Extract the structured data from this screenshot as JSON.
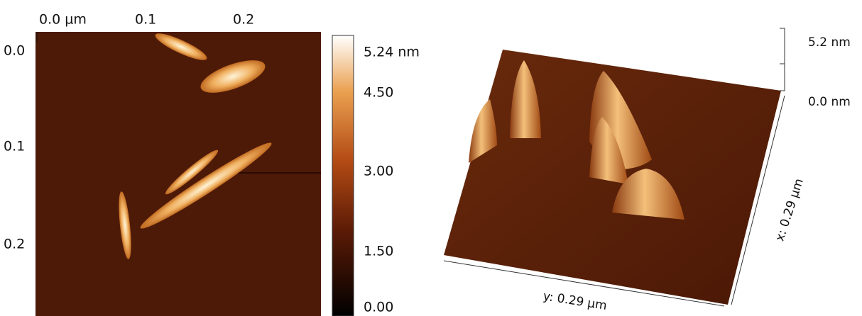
{
  "map": {
    "x_ticks": [
      "0.0 µm",
      "0.1",
      "0.2"
    ],
    "y_ticks": [
      "0.0",
      "0.1",
      "0.2"
    ]
  },
  "colorbar": {
    "labels": [
      "5.24 nm",
      "4.50",
      "3.00",
      "1.50",
      "0.00"
    ]
  },
  "surface": {
    "z_labels": [
      "5.2 nm",
      "0.0 nm"
    ],
    "y_axis": "y: 0.29 µm",
    "x_axis": "x: 0.29 µm"
  }
}
